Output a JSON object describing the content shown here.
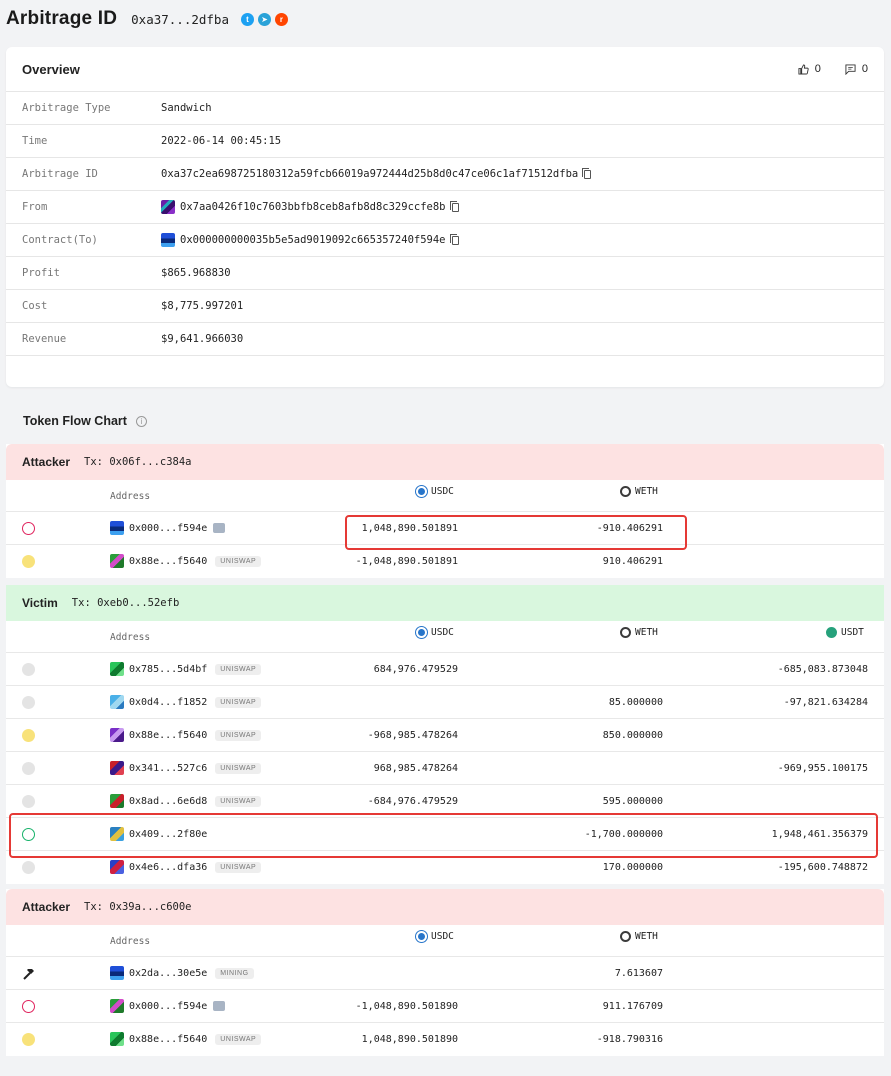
{
  "header": {
    "title": "Arbitrage ID",
    "short_id": "0xa37...2dfba"
  },
  "overview": {
    "title": "Overview",
    "likes": "0",
    "comments": "0",
    "rows": [
      {
        "label": "Arbitrage Type",
        "value": "Sandwich"
      },
      {
        "label": "Time",
        "value": "2022-06-14 00:45:15"
      },
      {
        "label": "Arbitrage ID",
        "value": "0xa37c2ea698725180312a59fcb66019a972444d25b8d0c47ce06c1af71512dfba"
      },
      {
        "label": "From",
        "value": "0x7aa0426f10c7603bbfb8ceb8afb8d8c329ccfe8b"
      },
      {
        "label": "Contract(To)",
        "value": "0x000000000035b5e5ad9019092c665357240f594e"
      },
      {
        "label": "Profit",
        "value": "$865.968830"
      },
      {
        "label": "Cost",
        "value": "$8,775.997201"
      },
      {
        "label": "Revenue",
        "value": "$9,641.966030"
      }
    ]
  },
  "token_flow": {
    "title": "Token Flow Chart",
    "address_header": "Address",
    "tokens": {
      "usdc": "USDC",
      "weth": "WETH",
      "usdt": "USDT"
    },
    "sections": [
      {
        "role": "Attacker",
        "tx": "Tx: 0x06f...c384a",
        "rows": [
          {
            "dot": "bot",
            "addr": "0x000...f594e",
            "tag": "",
            "robot": true,
            "usdc": "1,048,890.501891",
            "weth": "-910.406291",
            "usdt": ""
          },
          {
            "dot": "yellow",
            "addr": "0x88e...f5640",
            "tag": "UNISWAP",
            "usdc": "-1,048,890.501891",
            "weth": "910.406291",
            "usdt": ""
          }
        ]
      },
      {
        "role": "Victim",
        "tx": "Tx: 0xeb0...52efb",
        "rows": [
          {
            "dot": "grey",
            "addr": "0x785...5d4bf",
            "tag": "UNISWAP",
            "usdc": "684,976.479529",
            "weth": "",
            "usdt": "-685,083.873048"
          },
          {
            "dot": "grey",
            "addr": "0x0d4...f1852",
            "tag": "UNISWAP",
            "usdc": "",
            "weth": "85.000000",
            "usdt": "-97,821.634284"
          },
          {
            "dot": "yellow",
            "addr": "0x88e...f5640",
            "tag": "UNISWAP",
            "usdc": "-968,985.478264",
            "weth": "850.000000",
            "usdt": ""
          },
          {
            "dot": "grey",
            "addr": "0x341...527c6",
            "tag": "UNISWAP",
            "usdc": "968,985.478264",
            "weth": "",
            "usdt": "-969,955.100175"
          },
          {
            "dot": "grey",
            "addr": "0x8ad...6e6d8",
            "tag": "UNISWAP",
            "usdc": "-684,976.479529",
            "weth": "595.000000",
            "usdt": ""
          },
          {
            "dot": "victim",
            "addr": "0x409...2f80e",
            "tag": "",
            "usdc": "",
            "weth": "-1,700.000000",
            "usdt": "1,948,461.356379"
          },
          {
            "dot": "grey",
            "addr": "0x4e6...dfa36",
            "tag": "UNISWAP",
            "usdc": "",
            "weth": "170.000000",
            "usdt": "-195,600.748872"
          }
        ]
      },
      {
        "role": "Attacker",
        "tx": "Tx: 0x39a...c600e",
        "rows": [
          {
            "dot": "miner",
            "addr": "0x2da...30e5e",
            "tag": "MINING",
            "usdc": "",
            "weth": "7.613607",
            "usdt": ""
          },
          {
            "dot": "bot",
            "addr": "0x000...f594e",
            "tag": "",
            "robot": true,
            "usdc": "-1,048,890.501890",
            "weth": "911.176709",
            "usdt": ""
          },
          {
            "dot": "yellow",
            "addr": "0x88e...f5640",
            "tag": "UNISWAP",
            "usdc": "1,048,890.501890",
            "weth": "-918.790316",
            "usdt": ""
          }
        ]
      }
    ]
  },
  "colors": {
    "attacker_bg": "#fde2e2",
    "victim_bg": "#d9f7de",
    "highlight": "#e53935"
  }
}
